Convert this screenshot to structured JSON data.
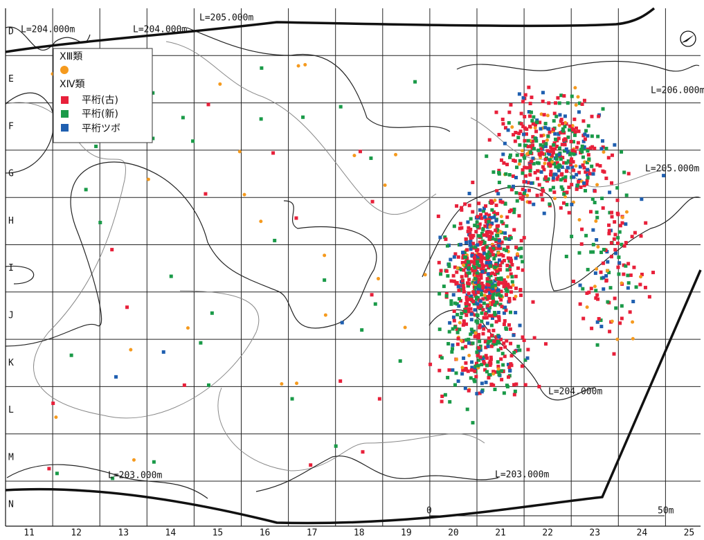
{
  "legend": {
    "group1": "ⅩⅢ類",
    "group2": "ⅩⅣ類",
    "items": [
      "平桁(古)",
      "平桁(新)",
      "平桁ツボ"
    ]
  },
  "rows": [
    "D",
    "E",
    "F",
    "G",
    "H",
    "I",
    "J",
    "K",
    "L",
    "M",
    "N"
  ],
  "columns": [
    "11",
    "12",
    "13",
    "14",
    "15",
    "16",
    "17",
    "18",
    "19",
    "20",
    "21",
    "22",
    "23",
    "24",
    "25"
  ],
  "contours": [
    "L=204.000m",
    "L=204.000m",
    "L=205.000m",
    "L=206.000m",
    "L=205.000m",
    "L=204.000m",
    "L=203.000m",
    "L=203.000m"
  ],
  "scale": {
    "start": "0",
    "end": "50m"
  }
}
